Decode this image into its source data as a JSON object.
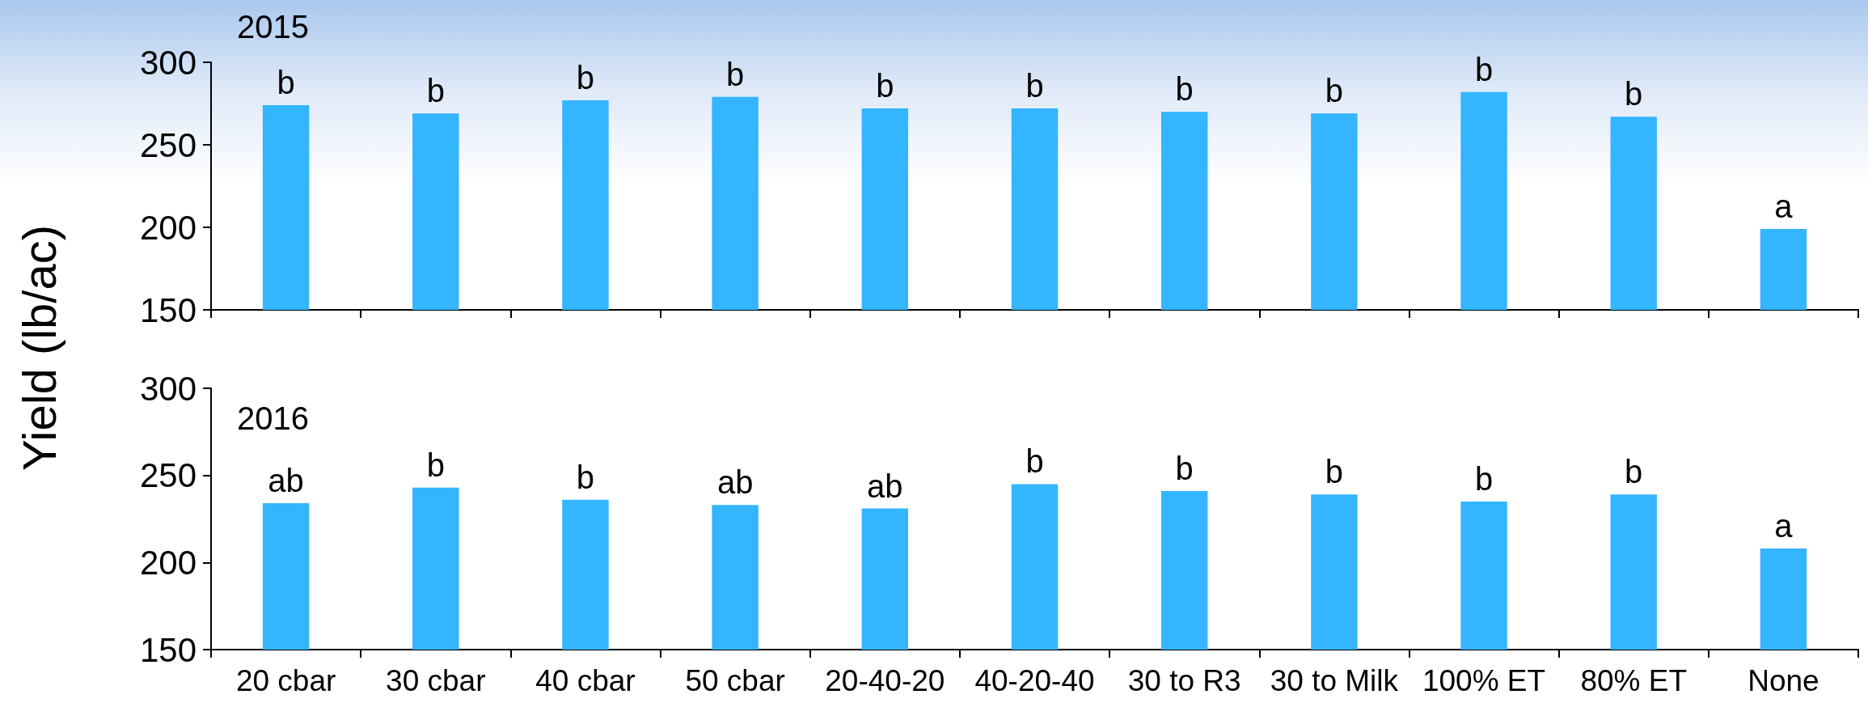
{
  "chart_data": [
    {
      "type": "bar",
      "title": "2015",
      "ylabel": "Yield (lb/ac)",
      "categories": [
        null,
        null,
        null,
        null,
        null,
        null,
        null,
        null,
        null,
        null,
        null
      ],
      "values": [
        274,
        269,
        277,
        279,
        272,
        272,
        270,
        269,
        282,
        267,
        199
      ],
      "value_labels": [
        "b",
        "b",
        "b",
        "b",
        "b",
        "b",
        "b",
        "b",
        "b",
        "b",
        "a"
      ],
      "color": "#33b5ff",
      "ylim": [
        150,
        300
      ],
      "yticks": [
        150,
        200,
        250,
        300
      ],
      "grid": false,
      "tick_labels": "y"
    },
    {
      "type": "bar",
      "title": "2016",
      "categories": [
        "20 cbar",
        "30 cbar",
        "40 cbar",
        "50 cbar",
        "20-40-20",
        "40-20-40",
        "30 to R3",
        "30 to Milk",
        "100% ET",
        "80% ET",
        "None"
      ],
      "values": [
        234,
        243,
        236,
        233,
        231,
        245,
        241,
        239,
        235,
        239,
        208
      ],
      "value_labels": [
        "ab",
        "b",
        "b",
        "ab",
        "ab",
        "b",
        "b",
        "b",
        "b",
        "b",
        "a"
      ],
      "color": "#33b5ff",
      "ylim": [
        150,
        300
      ],
      "yticks": [
        150,
        200,
        250,
        300
      ],
      "grid": false
    }
  ]
}
